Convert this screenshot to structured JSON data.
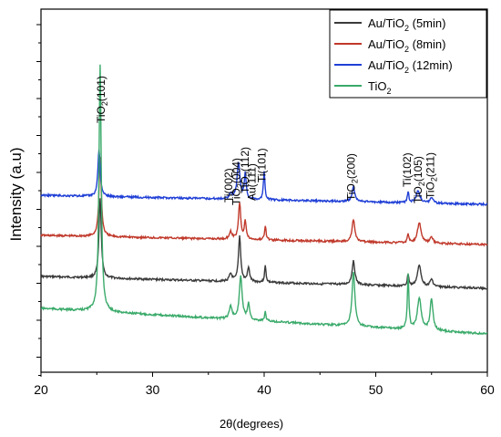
{
  "chart_data": {
    "type": "line",
    "xlabel": "2θ(degrees)",
    "ylabel": "Intensity (a.u)",
    "xlim": [
      20,
      60
    ],
    "x_ticks": [
      20,
      30,
      40,
      50,
      60
    ],
    "grid": false,
    "legend_position": "top-right",
    "series": [
      {
        "name": "Au/TiO₂ (5min)",
        "name_main": "Au/TiO",
        "name_sub": "2",
        "name_rest": " (5min)",
        "color": "#3a3a3a",
        "baseline_start": 303,
        "baseline_end": 316,
        "peaks": [
          [
            25.3,
            88,
            0.12
          ],
          [
            37.0,
            8,
            0.15
          ],
          [
            37.8,
            50,
            0.12
          ],
          [
            38.6,
            15,
            0.12
          ],
          [
            40.1,
            18,
            0.08
          ],
          [
            48.0,
            26,
            0.15
          ],
          [
            52.9,
            13,
            0.08
          ],
          [
            53.9,
            23,
            0.2
          ],
          [
            55.0,
            8,
            0.15
          ]
        ]
      },
      {
        "name": "Au/TiO₂ (8min)",
        "name_main": "Au/TiO",
        "name_sub": "2",
        "name_rest": " (8min)",
        "color": "#c0392b",
        "baseline_start": 258,
        "baseline_end": 268,
        "peaks": [
          [
            25.3,
            88,
            0.12
          ],
          [
            37.0,
            8,
            0.15
          ],
          [
            37.8,
            40,
            0.12
          ],
          [
            38.3,
            20,
            0.1
          ],
          [
            40.1,
            16,
            0.08
          ],
          [
            48.0,
            24,
            0.15
          ],
          [
            52.9,
            10,
            0.08
          ],
          [
            53.9,
            22,
            0.2
          ],
          [
            55.0,
            7,
            0.15
          ]
        ]
      },
      {
        "name": "Au/TiO₂ (12min)",
        "name_main": "Au/TiO",
        "name_sub": "2",
        "name_rest": " (12min)",
        "color": "#1f3fd6",
        "baseline_start": 214,
        "baseline_end": 224,
        "peaks": [
          [
            25.2,
            52,
            0.12
          ],
          [
            37.0,
            6,
            0.15
          ],
          [
            37.7,
            40,
            0.15
          ],
          [
            38.3,
            28,
            0.1
          ],
          [
            40.0,
            32,
            0.08
          ],
          [
            48.0,
            16,
            0.15
          ],
          [
            52.9,
            12,
            0.08
          ],
          [
            53.8,
            13,
            0.2
          ],
          [
            55.0,
            6,
            0.15
          ]
        ]
      },
      {
        "name": "TiO₂",
        "name_main": "TiO",
        "name_sub": "2",
        "name_rest": "",
        "color": "#3aaa6a",
        "baseline_start": 338,
        "baseline_end": 366,
        "peaks": [
          [
            25.3,
            270,
            0.12
          ],
          [
            37.0,
            14,
            0.15
          ],
          [
            37.9,
            48,
            0.15
          ],
          [
            38.6,
            18,
            0.12
          ],
          [
            40.1,
            10,
            0.08
          ],
          [
            48.0,
            60,
            0.15
          ],
          [
            52.9,
            60,
            0.08
          ],
          [
            53.9,
            35,
            0.2
          ],
          [
            55.0,
            35,
            0.15
          ]
        ]
      }
    ],
    "annotations": [
      {
        "main": "TiO",
        "sub": "2",
        "rest": "(101)",
        "x": 25.4,
        "rotated": true
      },
      {
        "main": "Ti(002)",
        "sub": "",
        "rest": "",
        "x": 36.8,
        "rotated": true
      },
      {
        "main": "TiO",
        "sub": "2",
        "rest": "(004)",
        "x": 37.5,
        "rotated": true
      },
      {
        "main": "TiO",
        "sub": "2",
        "rest": "(112)",
        "x": 38.3,
        "rotated": true
      },
      {
        "main": "Au(111)",
        "sub": "",
        "rest": "",
        "x": 38.9,
        "rotated": true
      },
      {
        "main": "Ti(101)",
        "sub": "",
        "rest": "",
        "x": 39.8,
        "rotated": true
      },
      {
        "main": "TiO",
        "sub": "2",
        "rest": "(200)",
        "x": 47.8,
        "rotated": true
      },
      {
        "main": "Ti(102)",
        "sub": "",
        "rest": "",
        "x": 52.8,
        "rotated": true
      },
      {
        "main": "TiO",
        "sub": "2",
        "rest": "(105)",
        "x": 53.8,
        "rotated": true
      },
      {
        "main": "TiO",
        "sub": "2",
        "rest": "(211)",
        "x": 54.9,
        "rotated": true
      }
    ]
  }
}
